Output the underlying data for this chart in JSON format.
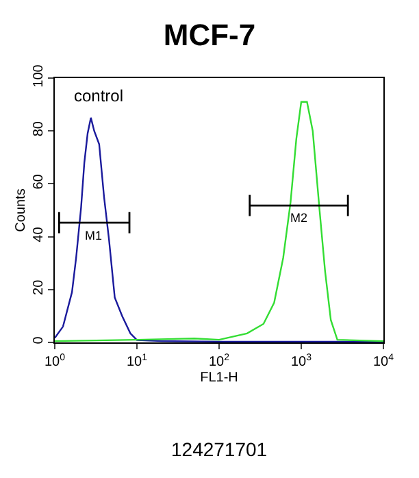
{
  "chart_data": {
    "type": "line",
    "title": "MCF-7",
    "xlabel": "FL1-H",
    "ylabel": "Counts",
    "log": "x",
    "xlim": [
      1,
      10000
    ],
    "xticks": [
      {
        "value": 1,
        "label": "10$^{0}$"
      },
      {
        "value": 10,
        "label": "10$^{1}$"
      },
      {
        "value": 100,
        "label": "10$^{2}$"
      },
      {
        "value": 1000,
        "label": "10$^{3}$"
      },
      {
        "value": 10000,
        "label": "10$^{4}$"
      }
    ],
    "ylim": [
      0,
      100
    ],
    "yticks": [
      0,
      20,
      40,
      60,
      80,
      100
    ],
    "series": [
      {
        "color": "#1a1a9c",
        "x": [
          1,
          1.26,
          1.62,
          1.82,
          2.09,
          2.29,
          2.51,
          2.75,
          3.02,
          3.47,
          3.98,
          4.57,
          5.37,
          6.61,
          8.32,
          10,
          20,
          100,
          1000,
          10000
        ],
        "values": [
          1.7,
          6,
          19,
          32,
          51,
          68,
          79,
          85,
          80,
          75,
          55,
          39,
          17,
          10,
          3.4,
          0.9,
          0.5,
          0.3,
          0.3,
          0.3
        ]
      },
      {
        "color": "#33dd33",
        "x": [
          1,
          10,
          50,
          100,
          219,
          347,
          468,
          603,
          741,
          871,
          1000,
          1175,
          1380,
          1660,
          1950,
          2290,
          2750,
          10000
        ],
        "values": [
          0.5,
          1,
          1.5,
          1,
          3.4,
          7,
          15,
          32,
          53,
          77,
          91,
          91,
          80,
          51,
          27,
          8.5,
          1,
          0.5
        ]
      },
      {
        "color": "#000000",
        "x": [
          1.13,
          8.1
        ],
        "values": [
          45.3,
          45.3
        ],
        "errors": [
          4,
          4
        ]
      },
      {
        "color": "#000000",
        "x": [
          236,
          3700
        ],
        "values": [
          51.8,
          51.8
        ],
        "errors": [
          4,
          4
        ]
      }
    ],
    "annotations": [
      "control",
      "124271701",
      {
        "text": "M1",
        "x": 3.0,
        "y": 45.3
      },
      {
        "text": "M2",
        "x": 930,
        "y": 51.8
      }
    ]
  }
}
